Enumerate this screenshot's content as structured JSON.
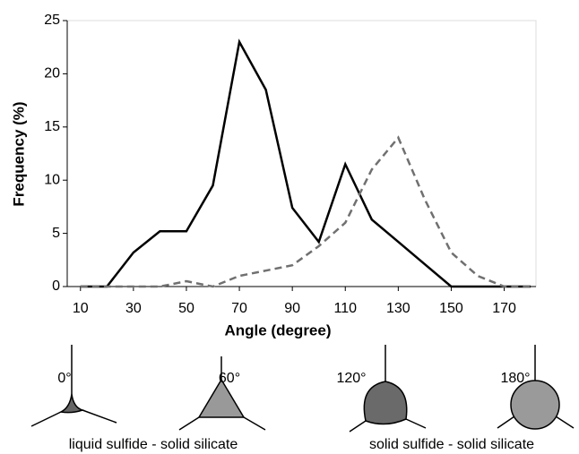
{
  "chart_data": {
    "type": "line",
    "x_label": "Angle (degree)",
    "y_label": "Frequency (%)",
    "x": [
      10,
      20,
      30,
      40,
      50,
      60,
      70,
      80,
      90,
      100,
      110,
      120,
      130,
      140,
      150,
      160,
      170,
      180
    ],
    "series": [
      {
        "color": "#000000",
        "style": "solid",
        "values": [
          0,
          0,
          3.2,
          5.2,
          5.2,
          9.5,
          23,
          18.5,
          7.4,
          4.2,
          11.5,
          6.3,
          4.2,
          2.1,
          0,
          0,
          0,
          0
        ]
      },
      {
        "color": "#707070",
        "style": "dashed",
        "values": [
          0,
          0,
          0,
          0,
          0.5,
          0,
          1.0,
          1.5,
          2.0,
          3.8,
          6.0,
          11.0,
          14,
          8.2,
          3.2,
          1.0,
          0,
          0
        ]
      }
    ],
    "xlim": [
      5,
      182
    ],
    "xticks": [
      10,
      30,
      50,
      70,
      90,
      110,
      130,
      150,
      170
    ],
    "ylim": [
      0,
      25
    ],
    "yticks": [
      0,
      5,
      10,
      15,
      20,
      25
    ],
    "grid": false
  },
  "illustration": {
    "angles": [
      "0°",
      "60°",
      "120°",
      "180°"
    ],
    "captions": [
      "liquid sulfide - solid silicate",
      "solid sulfide - solid silicate"
    ]
  }
}
